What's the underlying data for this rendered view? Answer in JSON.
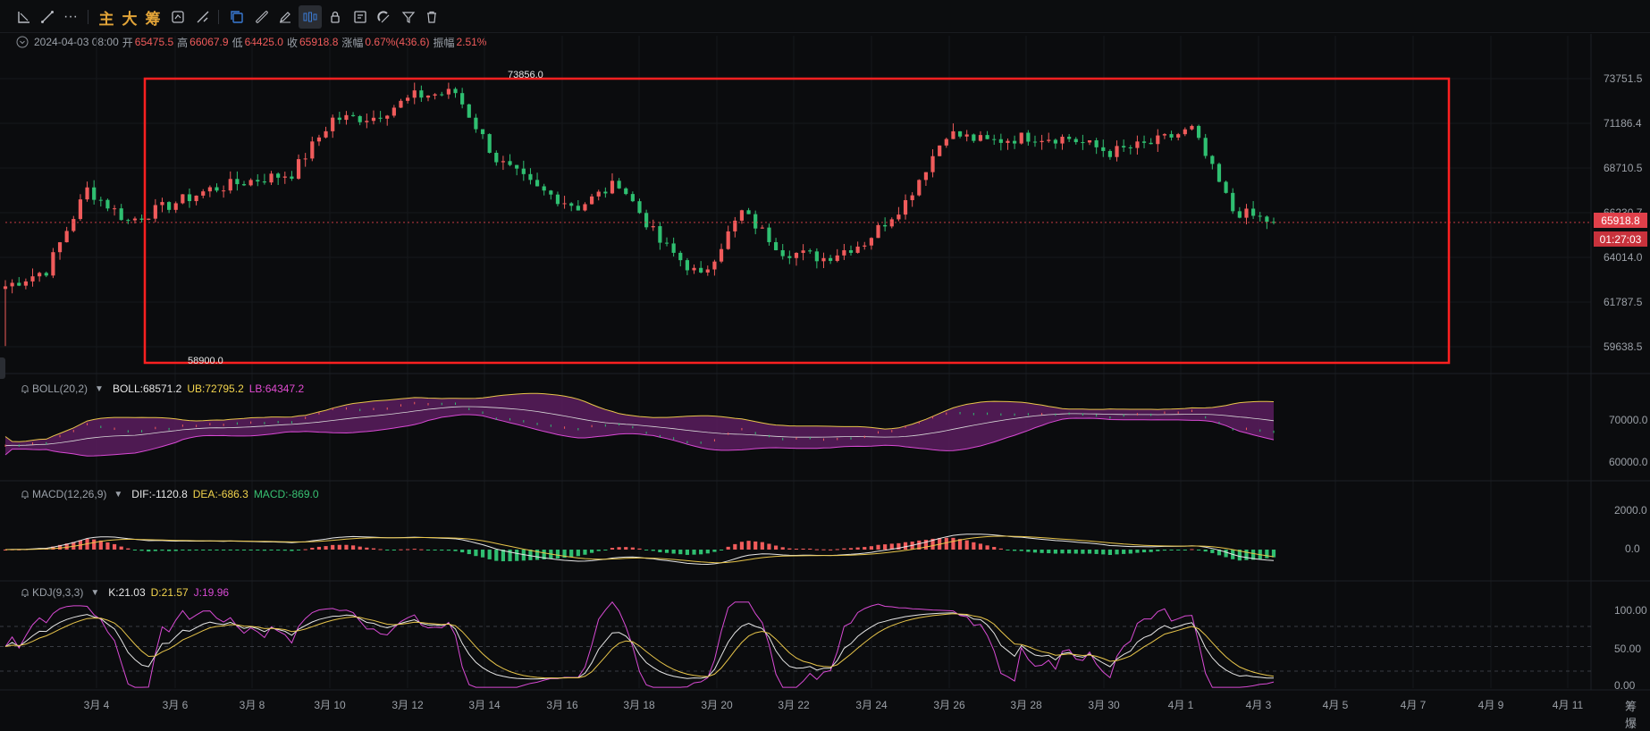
{
  "toolbar": {
    "items": [
      {
        "name": "line-tool-icon",
        "text": ""
      },
      {
        "name": "trendline-icon",
        "text": ""
      },
      {
        "name": "more-icon",
        "text": "···"
      },
      {
        "name": "main-chart-button",
        "text": "主"
      },
      {
        "name": "large-order-button",
        "text": "大"
      },
      {
        "name": "chip-button",
        "text": "筹"
      }
    ]
  },
  "ohlc": {
    "datetime": "2024-04-03 08:00",
    "open_label": "开",
    "open": "65475.5",
    "high_label": "高",
    "high": "66067.9",
    "low_label": "低",
    "low": "64425.0",
    "close_label": "收",
    "close": "65918.8",
    "change_label": "涨幅",
    "change": "0.67%(436.6)",
    "amplitude_label": "振幅",
    "amplitude": "2.51%"
  },
  "price_axis": {
    "labels": [
      "73751.5",
      "71186.4",
      "68710.5",
      "66230.7",
      "64014.0",
      "61787.5",
      "59638.5"
    ]
  },
  "current_price": "65918.8",
  "countdown": "01:27:03",
  "high_marker": "73856.0",
  "low_marker": "58900.0",
  "boll": {
    "name": "BOLL(20,2)",
    "boll": "BOLL:68571.2",
    "ub": "UB:72795.2",
    "lb": "LB:64347.2",
    "axis": [
      "70000.0",
      "60000.0"
    ]
  },
  "macd": {
    "name": "MACD(12,26,9)",
    "dif": "DIF:-1120.8",
    "dea": "DEA:-686.3",
    "macd": "MACD:-869.0",
    "axis": [
      "2000.0",
      "0.0"
    ]
  },
  "kdj": {
    "name": "KDJ(9,3,3)",
    "k": "K:21.03",
    "d": "D:21.57",
    "j": "J:19.96",
    "axis": [
      "100.00",
      "50.00",
      "0.00"
    ]
  },
  "x_axis": [
    "3月 4",
    "3月 6",
    "3月 8",
    "3月 10",
    "3月 12",
    "3月 14",
    "3月 16",
    "3月 18",
    "3月 20",
    "3月 22",
    "3月 24",
    "3月 26",
    "3月 28",
    "3月 30",
    "4月 1",
    "4月 3",
    "4月 5",
    "4月 7",
    "4月 9",
    "4月 11"
  ],
  "corner_label": "筹 爆",
  "colors": {
    "up": "#f05b5b",
    "down": "#2fbf71",
    "highlight_box": "#ff2020",
    "boll_fill": "#5a1d5e",
    "accent_blue": "#3a7bd5"
  },
  "chart_data": {
    "type": "candlestick",
    "interval": "4h",
    "xlabel": "",
    "ylabel": "",
    "ylim": [
      58000,
      75000
    ],
    "high": 73856.0,
    "low": 58900.0,
    "last_close": 65918.8,
    "daily_closes_approx": [
      {
        "date": "3月 3",
        "close": 62300
      },
      {
        "date": "3月 4",
        "close": 63200
      },
      {
        "date": "3月 5",
        "close": 67800
      },
      {
        "date": "3月 6",
        "close": 66000
      },
      {
        "date": "3月 7",
        "close": 66900
      },
      {
        "date": "3月 8",
        "close": 67800
      },
      {
        "date": "3月 9",
        "close": 68300
      },
      {
        "date": "3月 10",
        "close": 68700
      },
      {
        "date": "3月 11",
        "close": 71800
      },
      {
        "date": "3月 12",
        "close": 71900
      },
      {
        "date": "3月 13",
        "close": 73100
      },
      {
        "date": "3月 14",
        "close": 73300
      },
      {
        "date": "3月 15",
        "close": 69500
      },
      {
        "date": "3月 16",
        "close": 67800
      },
      {
        "date": "3月 17",
        "close": 66800
      },
      {
        "date": "3月 18",
        "close": 68200
      },
      {
        "date": "3月 19",
        "close": 64800
      },
      {
        "date": "3月 20",
        "close": 62800
      },
      {
        "date": "3月 21",
        "close": 66500
      },
      {
        "date": "3月 22",
        "close": 64300
      },
      {
        "date": "3月 23",
        "close": 63900
      },
      {
        "date": "3月 24",
        "close": 64800
      },
      {
        "date": "3月 25",
        "close": 67100
      },
      {
        "date": "3月 26",
        "close": 71000
      },
      {
        "date": "3月 27",
        "close": 70500
      },
      {
        "date": "3月 28",
        "close": 70800
      },
      {
        "date": "3月 29",
        "close": 70700
      },
      {
        "date": "3月 30",
        "close": 69900
      },
      {
        "date": "3月 31",
        "close": 70400
      },
      {
        "date": "4月 1",
        "close": 71200
      },
      {
        "date": "4月 2",
        "close": 66600
      },
      {
        "date": "4月 3",
        "close": 65918.8
      }
    ]
  }
}
